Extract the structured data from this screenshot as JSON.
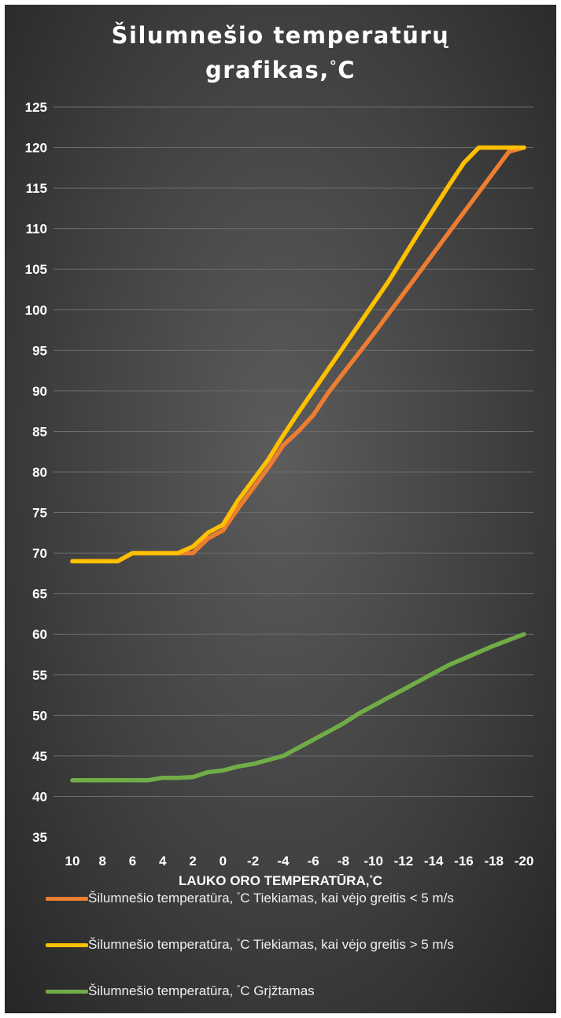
{
  "chart_data": {
    "type": "line",
    "title": "Šilumnešio temperatūrų grafikas,",
    "title_lines": [
      "Šilumnešio temperatūrų",
      "grafikas,"
    ],
    "title_unit": "°C",
    "xlabel": "LAUKO ORO TEMPERATŪRA,",
    "xlabel_unit": "°C",
    "ylabel": "",
    "ylim": [
      35,
      125
    ],
    "yticks": [
      35,
      40,
      45,
      50,
      55,
      60,
      65,
      70,
      75,
      80,
      85,
      90,
      95,
      100,
      105,
      110,
      115,
      120,
      125
    ],
    "x": [
      10,
      9,
      8,
      7,
      6,
      5,
      4,
      3,
      2,
      1,
      0,
      -1,
      -2,
      -3,
      -4,
      -5,
      -6,
      -7,
      -8,
      -9,
      -10,
      -11,
      -12,
      -13,
      -14,
      -15,
      -16,
      -17,
      -18,
      -19,
      -20
    ],
    "x_tick_labels": [
      "10",
      "8",
      "6",
      "4",
      "2",
      "0",
      "-2",
      "-4",
      "-6",
      "-8",
      "-10",
      "-12",
      "-14",
      "-16",
      "-18",
      "-20"
    ],
    "grid": true,
    "legend_position": "bottom",
    "series": [
      {
        "name": "Šilumnešio temperatūra, °C Tiekiamas, kai vėjo greitis < 5 m/s",
        "color": "#ed7d31",
        "values": [
          69,
          69,
          69,
          69,
          70,
          70,
          70,
          70,
          70,
          71.8,
          72.8,
          75.5,
          78,
          80.5,
          83.3,
          85,
          87,
          89.8,
          92.2,
          94.6,
          97,
          99.5,
          102,
          104.5,
          107,
          109.5,
          112,
          114.5,
          117,
          119.5,
          120
        ]
      },
      {
        "name": "Šilumnešio temperatūra, °C Tiekiamas, kai vėjo greitis > 5 m/s",
        "color": "#ffc000",
        "values": [
          69,
          69,
          69,
          69,
          70,
          70,
          70,
          70,
          70.8,
          72.5,
          73.5,
          76.5,
          79,
          81.5,
          84.5,
          87.3,
          90,
          92.7,
          95.4,
          98.1,
          100.8,
          103.5,
          106.5,
          109.5,
          112.4,
          115.3,
          118.1,
          120,
          120,
          120,
          120
        ]
      },
      {
        "name": "Šilumnešio temperatūra, °C Grįžtamas",
        "color": "#70ad47",
        "values": [
          42,
          42,
          42,
          42,
          42,
          42,
          42.3,
          42.3,
          42.4,
          43,
          43.2,
          43.7,
          44,
          44.5,
          45,
          46,
          47,
          48,
          49,
          50.2,
          51.2,
          52.2,
          53.2,
          54.2,
          55.2,
          56.2,
          57,
          57.8,
          58.6,
          59.3,
          60
        ]
      }
    ]
  }
}
